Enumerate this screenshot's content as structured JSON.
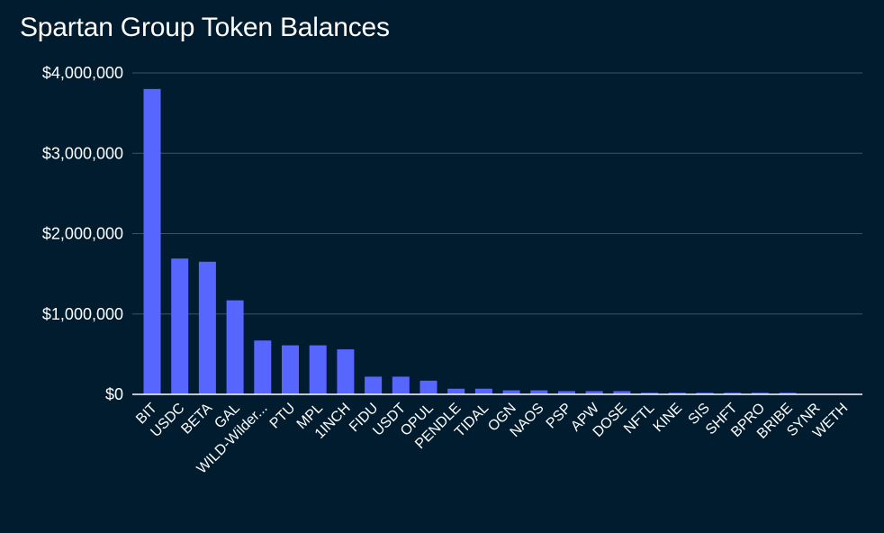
{
  "colors": {
    "background": "#011c2f",
    "bar": "#5766ff",
    "grid": "#3a5366",
    "axis": "#ffffff",
    "text": "#ffffff"
  },
  "chart_data": {
    "type": "bar",
    "title": "Spartan Group Token Balances",
    "xlabel": "",
    "ylabel": "",
    "ylim": [
      0,
      4000000
    ],
    "yticks": [
      0,
      1000000,
      2000000,
      3000000,
      4000000
    ],
    "ytick_labels": [
      "$0",
      "$1,000,000",
      "$2,000,000",
      "$3,000,000",
      "$4,000,000"
    ],
    "grid": true,
    "legend": "none",
    "categories": [
      "BIT",
      "USDC",
      "BETA",
      "GAL",
      "WILD-Wilder...",
      "PTU",
      "MPL",
      "1INCH",
      "FIDU",
      "USDT",
      "OPUL",
      "PENDLE",
      "TIDAL",
      "OGN",
      "NAOS",
      "PSP",
      "APW",
      "DOSE",
      "NFTL",
      "KINE",
      "SIS",
      "SHFT",
      "BPRO",
      "BRIBE",
      "SYNR",
      "WETH"
    ],
    "values": [
      3800000,
      1690000,
      1650000,
      1170000,
      670000,
      610000,
      610000,
      560000,
      220000,
      220000,
      170000,
      70000,
      70000,
      50000,
      50000,
      40000,
      40000,
      40000,
      20000,
      20000,
      20000,
      20000,
      20000,
      20000,
      5000,
      3000
    ]
  }
}
